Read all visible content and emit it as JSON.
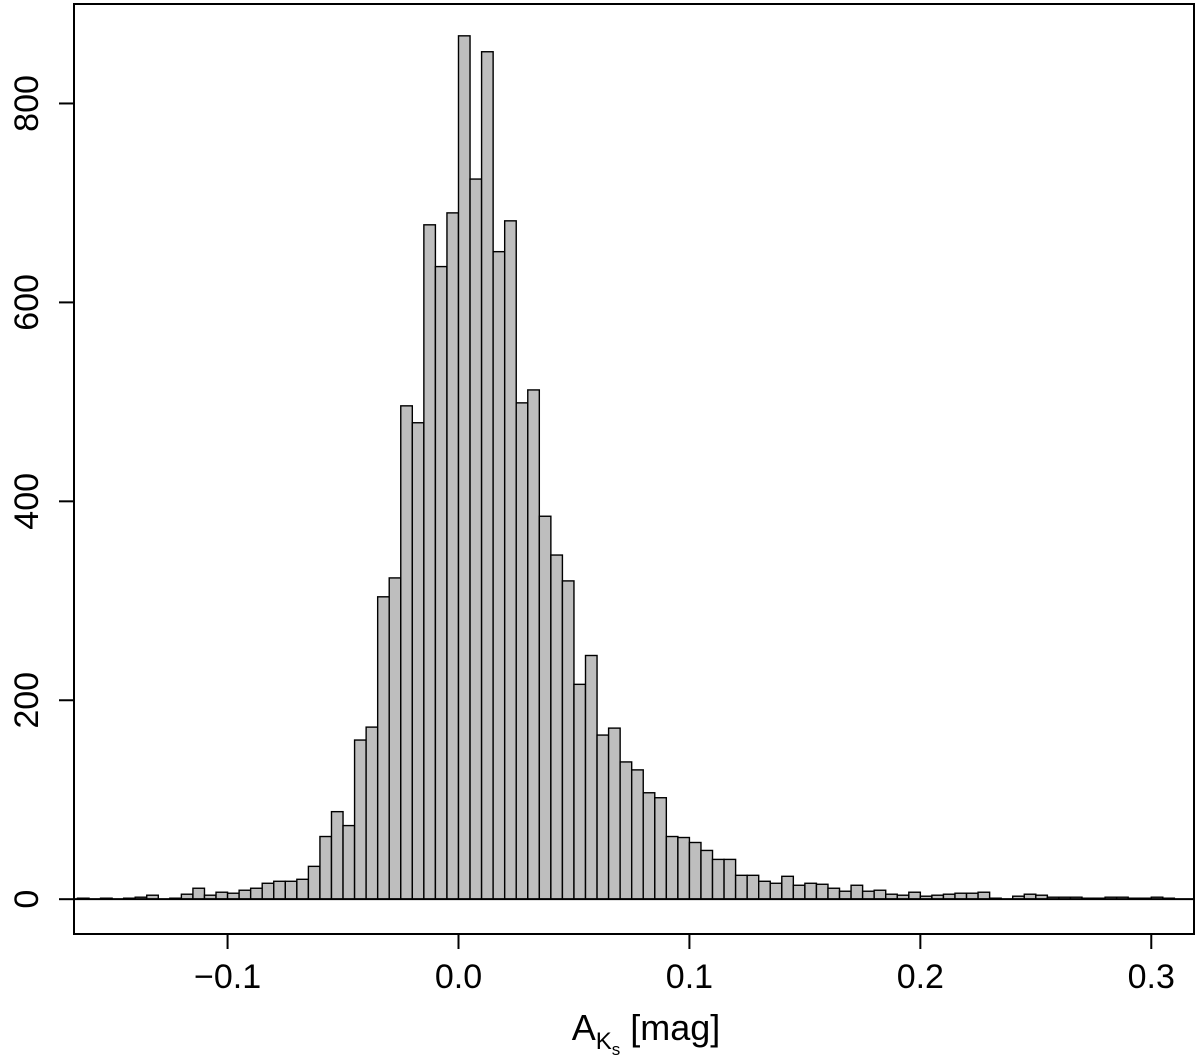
{
  "chart_data": {
    "type": "bar",
    "title": "",
    "xlabel": {
      "main": "A",
      "sub": "K",
      "subsub": "s",
      "rest": " [mag]"
    },
    "ylabel": "",
    "xlim": [
      -0.1665,
      0.3185
    ],
    "ylim": [
      -35,
      900
    ],
    "bin_width": 0.005,
    "first_bin_start": -0.165,
    "x_ticks": [
      -0.1,
      0.0,
      0.1,
      0.2,
      0.3
    ],
    "x_tick_labels": [
      "−0.1",
      "0.0",
      "0.1",
      "0.2",
      "0.3"
    ],
    "y_ticks": [
      0,
      200,
      400,
      600,
      800
    ],
    "y_tick_labels": [
      "0",
      "200",
      "400",
      "600",
      "800"
    ],
    "grid": false,
    "legend": "none",
    "bar_fill": "#bebebe",
    "bar_stroke": "#000000",
    "values": [
      1,
      0,
      1,
      0,
      1,
      2,
      4,
      0,
      1,
      5,
      11,
      4,
      7,
      6,
      9,
      11,
      16,
      18,
      18,
      20,
      33,
      63,
      88,
      74,
      160,
      173,
      304,
      323,
      496,
      479,
      678,
      636,
      690,
      868,
      724,
      852,
      651,
      682,
      499,
      512,
      385,
      346,
      320,
      216,
      245,
      165,
      172,
      138,
      130,
      107,
      102,
      63,
      62,
      57,
      49,
      40,
      40,
      24,
      24,
      18,
      16,
      23,
      14,
      16,
      15,
      11,
      8,
      14,
      8,
      9,
      5,
      4,
      7,
      3,
      4,
      5,
      6,
      6,
      7,
      1,
      0,
      3,
      5,
      4,
      2,
      2,
      2,
      1,
      1,
      2,
      2,
      1,
      1,
      2,
      1,
      0,
      0,
      1,
      0,
      1
    ]
  }
}
